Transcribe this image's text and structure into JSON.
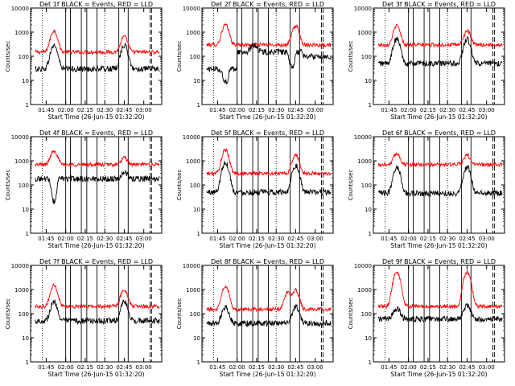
{
  "chart_data": [
    {
      "type": "line",
      "title": "Det 1f BLACK = Events, RED = LLD",
      "xlabel": "Start Time (26-Jun-15 01:32:20)",
      "ylabel": "Counts/sec",
      "yscale": "log",
      "ylim": [
        1,
        10000
      ],
      "xlim": [
        1.55,
        3.23
      ],
      "xtick_labels": [
        "01:45",
        "02:00",
        "02:15",
        "02:30",
        "02:45",
        "03:00"
      ],
      "xtick_values": [
        1.75,
        2.0,
        2.25,
        2.5,
        2.75,
        3.0
      ],
      "ytick_labels": [
        "1",
        "10",
        "100",
        "1000",
        "10000"
      ],
      "ytick_values": [
        1,
        10,
        100,
        1000,
        10000
      ],
      "dotted_markers": [
        1.7,
        2.5
      ],
      "vlines_solid": [
        2.0,
        2.06,
        2.2,
        2.27,
        2.4,
        2.68,
        2.8
      ],
      "vlines_dashed": [
        3.08,
        3.1
      ],
      "series": [
        {
          "name": "RED = LLD",
          "color": "#ff0000",
          "baseline": 150,
          "rises": [
            [
              2.75,
              150
            ]
          ],
          "bumps": [
            [
              1.85,
              0.05,
              1000
            ],
            [
              2.75,
              0.05,
              500
            ]
          ],
          "noise": 0.08
        },
        {
          "name": "BLACK = Events",
          "color": "#000000",
          "baseline": 30,
          "rises": [
            [
              2.75,
              30
            ]
          ],
          "bumps": [
            [
              1.85,
              0.05,
              250
            ],
            [
              2.75,
              0.05,
              250
            ]
          ],
          "noise": 0.12
        }
      ]
    },
    {
      "type": "line",
      "title": "Det 2f BLACK = Events, RED = LLD",
      "xlabel": "Start Time (26-Jun-15 01:32:20)",
      "ylabel": "Counts/sec",
      "yscale": "log",
      "ylim": [
        1,
        10000
      ],
      "xlim": [
        1.55,
        3.23
      ],
      "xtick_labels": [
        "01:45",
        "02:00",
        "02:15",
        "02:30",
        "02:45",
        "03:00"
      ],
      "xtick_values": [
        1.75,
        2.0,
        2.25,
        2.5,
        2.75,
        3.0
      ],
      "ytick_labels": [
        "1",
        "10",
        "100",
        "1000",
        "10000"
      ],
      "ytick_values": [
        1,
        10,
        100,
        1000,
        10000
      ],
      "dotted_markers": [
        1.7,
        2.5
      ],
      "vlines_solid": [
        2.0,
        2.06,
        2.2,
        2.27,
        2.4,
        2.68,
        2.8
      ],
      "vlines_dashed": [
        3.08,
        3.1
      ],
      "series": [
        {
          "name": "RED = LLD",
          "color": "#ff0000",
          "baseline": 300,
          "rises": [
            [
              2.75,
              300
            ]
          ],
          "bumps": [
            [
              1.85,
              0.05,
              1700
            ],
            [
              2.75,
              0.05,
              1500
            ]
          ],
          "noise": 0.08
        },
        {
          "name": "BLACK = Events",
          "color": "#000000",
          "baseline": 30,
          "rises": [
            [
              2.0,
              150
            ],
            [
              2.85,
              100
            ]
          ],
          "bumps": [
            [
              2.22,
              0.05,
              150
            ]
          ],
          "dips": [
            [
              1.85,
              0.05,
              0.3
            ],
            [
              2.7,
              0.05,
              0.25
            ]
          ],
          "noise": 0.12
        }
      ]
    },
    {
      "type": "line",
      "title": "Det 3f BLACK = Events, RED = LLD",
      "xlabel": "Start Time (26-Jun-15 01:32:20)",
      "ylabel": "Counts/sec",
      "yscale": "log",
      "ylim": [
        1,
        10000
      ],
      "xlim": [
        1.55,
        3.23
      ],
      "xtick_labels": [
        "01:45",
        "02:00",
        "02:15",
        "02:30",
        "02:45",
        "03:00"
      ],
      "xtick_values": [
        1.75,
        2.0,
        2.25,
        2.5,
        2.75,
        3.0
      ],
      "ytick_labels": [
        "1",
        "10",
        "100",
        "1000",
        "10000"
      ],
      "ytick_values": [
        1,
        10,
        100,
        1000,
        10000
      ],
      "dotted_markers": [
        1.7,
        2.5
      ],
      "vlines_solid": [
        2.0,
        2.06,
        2.2,
        2.27,
        2.4,
        2.68,
        2.8
      ],
      "vlines_dashed": [
        3.08,
        3.1
      ],
      "series": [
        {
          "name": "RED = LLD",
          "color": "#ff0000",
          "baseline": 300,
          "rises": [
            [
              2.75,
              300
            ]
          ],
          "bumps": [
            [
              1.85,
              0.05,
              1500
            ],
            [
              2.75,
              0.05,
              800
            ]
          ],
          "noise": 0.08
        },
        {
          "name": "BLACK = Events",
          "color": "#000000",
          "baseline": 50,
          "rises": [
            [
              2.75,
              50
            ]
          ],
          "bumps": [
            [
              1.85,
              0.05,
              450
            ],
            [
              2.75,
              0.05,
              450
            ]
          ],
          "noise": 0.12
        }
      ]
    },
    {
      "type": "line",
      "title": "Det 4f BLACK = Events, RED = LLD",
      "xlabel": "Start Time (26-Jun-15 01:32:20)",
      "ylabel": "Counts/sec",
      "yscale": "log",
      "ylim": [
        1,
        10000
      ],
      "xlim": [
        1.55,
        3.23
      ],
      "xtick_labels": [
        "01:45",
        "02:00",
        "02:15",
        "02:30",
        "02:45",
        "03:00"
      ],
      "xtick_values": [
        1.75,
        2.0,
        2.25,
        2.5,
        2.75,
        3.0
      ],
      "ytick_labels": [
        "1",
        "10",
        "100",
        "1000",
        "10000"
      ],
      "ytick_values": [
        1,
        10,
        100,
        1000,
        10000
      ],
      "dotted_markers": [
        1.7,
        2.5
      ],
      "vlines_solid": [
        2.0,
        2.06,
        2.2,
        2.27,
        2.4,
        2.68,
        2.8
      ],
      "vlines_dashed": [
        3.08,
        3.1
      ],
      "series": [
        {
          "name": "RED = LLD",
          "color": "#ff0000",
          "baseline": 700,
          "rises": [
            [
              2.75,
              700
            ]
          ],
          "bumps": [
            [
              1.85,
              0.05,
              2000
            ],
            [
              2.75,
              0.05,
              600
            ]
          ],
          "noise": 0.08
        },
        {
          "name": "BLACK = Events",
          "color": "#000000",
          "baseline": 180,
          "rises": [
            [
              2.75,
              180
            ]
          ],
          "bumps": [
            [
              2.75,
              0.05,
              150
            ]
          ],
          "dips": [
            [
              1.85,
              0.05,
              0.12
            ]
          ],
          "noise": 0.12
        }
      ]
    },
    {
      "type": "line",
      "title": "Det 5f BLACK = Events, RED = LLD",
      "xlabel": "Start Time (26-Jun-15 01:32:20)",
      "ylabel": "Counts/sec",
      "yscale": "log",
      "ylim": [
        1,
        10000
      ],
      "xlim": [
        1.55,
        3.23
      ],
      "xtick_labels": [
        "01:45",
        "02:00",
        "02:15",
        "02:30",
        "02:45",
        "03:00"
      ],
      "xtick_values": [
        1.75,
        2.0,
        2.25,
        2.5,
        2.75,
        3.0
      ],
      "ytick_labels": [
        "1",
        "10",
        "100",
        "1000",
        "10000"
      ],
      "ytick_values": [
        1,
        10,
        100,
        1000,
        10000
      ],
      "dotted_markers": [
        1.7,
        2.5
      ],
      "vlines_solid": [
        2.0,
        2.06,
        2.2,
        2.27,
        2.4,
        2.68,
        2.8
      ],
      "vlines_dashed": [
        3.08,
        3.1
      ],
      "series": [
        {
          "name": "RED = LLD",
          "color": "#ff0000",
          "baseline": 300,
          "rises": [
            [
              2.75,
              300
            ]
          ],
          "bumps": [
            [
              1.85,
              0.05,
              2500
            ],
            [
              2.75,
              0.05,
              1500
            ]
          ],
          "noise": 0.08
        },
        {
          "name": "BLACK = Events",
          "color": "#000000",
          "baseline": 50,
          "rises": [
            [
              2.75,
              50
            ]
          ],
          "bumps": [
            [
              1.85,
              0.05,
              800
            ],
            [
              2.75,
              0.05,
              600
            ]
          ],
          "noise": 0.12
        }
      ]
    },
    {
      "type": "line",
      "title": "Det 6f BLACK = Events, RED = LLD",
      "xlabel": "Start Time (26-Jun-15 01:32:20)",
      "ylabel": "Counts/sec",
      "yscale": "log",
      "ylim": [
        1,
        10000
      ],
      "xlim": [
        1.55,
        3.23
      ],
      "xtick_labels": [
        "01:45",
        "02:00",
        "02:15",
        "02:30",
        "02:45",
        "03:00"
      ],
      "xtick_values": [
        1.75,
        2.0,
        2.25,
        2.5,
        2.75,
        3.0
      ],
      "ytick_labels": [
        "1",
        "10",
        "100",
        "1000",
        "10000"
      ],
      "ytick_values": [
        1,
        10,
        100,
        1000,
        10000
      ],
      "dotted_markers": [
        1.7,
        2.5
      ],
      "vlines_solid": [
        2.0,
        2.06,
        2.2,
        2.27,
        2.4,
        2.68,
        2.8
      ],
      "vlines_dashed": [
        3.08,
        3.1
      ],
      "series": [
        {
          "name": "RED = LLD",
          "color": "#ff0000",
          "baseline": 700,
          "rises": [
            [
              2.75,
              700
            ]
          ],
          "bumps": [
            [
              1.85,
              0.05,
              1300
            ],
            [
              2.75,
              0.05,
              1000
            ]
          ],
          "noise": 0.08
        },
        {
          "name": "BLACK = Events",
          "color": "#000000",
          "baseline": 45,
          "rises": [
            [
              2.75,
              45
            ]
          ],
          "bumps": [
            [
              1.85,
              0.05,
              500
            ],
            [
              2.75,
              0.05,
              500
            ]
          ],
          "noise": 0.12
        }
      ]
    },
    {
      "type": "line",
      "title": "Det 7f BLACK = Events, RED = LLD",
      "xlabel": "Start Time (26-Jun-15 01:32:20)",
      "ylabel": "Counts/sec",
      "yscale": "log",
      "ylim": [
        1,
        10000
      ],
      "xlim": [
        1.55,
        3.23
      ],
      "xtick_labels": [
        "01:45",
        "02:00",
        "02:15",
        "02:30",
        "02:45",
        "03:00"
      ],
      "xtick_values": [
        1.75,
        2.0,
        2.25,
        2.5,
        2.75,
        3.0
      ],
      "ytick_labels": [
        "1",
        "10",
        "100",
        "1000",
        "10000"
      ],
      "ytick_values": [
        1,
        10,
        100,
        1000,
        10000
      ],
      "dotted_markers": [
        1.7,
        2.5
      ],
      "vlines_solid": [
        2.0,
        2.06,
        2.2,
        2.27,
        2.4,
        2.68,
        2.8
      ],
      "vlines_dashed": [
        3.08,
        3.1
      ],
      "series": [
        {
          "name": "RED = LLD",
          "color": "#ff0000",
          "baseline": 200,
          "rises": [
            [
              2.75,
              200
            ]
          ],
          "bumps": [
            [
              1.85,
              0.05,
              1300
            ],
            [
              2.75,
              0.05,
              800
            ]
          ],
          "noise": 0.08
        },
        {
          "name": "BLACK = Events",
          "color": "#000000",
          "baseline": 50,
          "rises": [
            [
              2.75,
              50
            ]
          ],
          "bumps": [
            [
              1.85,
              0.05,
              250
            ],
            [
              2.75,
              0.05,
              250
            ]
          ],
          "noise": 0.12
        }
      ]
    },
    {
      "type": "line",
      "title": "Det 8f BLACK = Events, RED = LLD",
      "xlabel": "Start Time (26-Jun-15 01:32:20)",
      "ylabel": "Counts/sec",
      "yscale": "log",
      "ylim": [
        1,
        10000
      ],
      "xlim": [
        1.55,
        3.23
      ],
      "xtick_labels": [
        "01:45",
        "02:00",
        "02:15",
        "02:30",
        "02:45",
        "03:00"
      ],
      "xtick_values": [
        1.75,
        2.0,
        2.25,
        2.5,
        2.75,
        3.0
      ],
      "ytick_labels": [
        "1",
        "10",
        "100",
        "1000",
        "10000"
      ],
      "ytick_values": [
        1,
        10,
        100,
        1000,
        10000
      ],
      "dotted_markers": [
        1.7,
        2.5
      ],
      "vlines_solid": [
        2.0,
        2.06,
        2.2,
        2.27,
        2.4,
        2.68,
        2.8
      ],
      "vlines_dashed": [
        3.08,
        3.1
      ],
      "series": [
        {
          "name": "RED = LLD",
          "color": "#ff0000",
          "baseline": 150,
          "rises": [
            [
              2.75,
              150
            ]
          ],
          "bumps": [
            [
              1.85,
              0.05,
              1300
            ],
            [
              2.75,
              0.05,
              800
            ],
            [
              2.65,
              0.05,
              600
            ]
          ],
          "noise": 0.08
        },
        {
          "name": "BLACK = Events",
          "color": "#000000",
          "baseline": 40,
          "rises": [
            [
              2.75,
              40
            ]
          ],
          "bumps": [
            [
              1.85,
              0.05,
              150
            ],
            [
              2.75,
              0.05,
              150
            ]
          ],
          "noise": 0.12
        }
      ]
    },
    {
      "type": "line",
      "title": "Det 9f BLACK = Events, RED = LLD",
      "xlabel": "Start Time (26-Jun-15 01:32:20)",
      "ylabel": "Counts/sec",
      "yscale": "log",
      "ylim": [
        1,
        10000
      ],
      "xlim": [
        1.55,
        3.23
      ],
      "xtick_labels": [
        "01:45",
        "02:00",
        "02:15",
        "02:30",
        "02:45",
        "03:00"
      ],
      "xtick_values": [
        1.75,
        2.0,
        2.25,
        2.5,
        2.75,
        3.0
      ],
      "ytick_labels": [
        "1",
        "10",
        "100",
        "1000",
        "10000"
      ],
      "ytick_values": [
        1,
        10,
        100,
        1000,
        10000
      ],
      "dotted_markers": [
        1.7,
        2.5
      ],
      "vlines_solid": [
        2.0,
        2.06,
        2.2,
        2.27,
        2.4,
        2.68,
        2.8
      ],
      "vlines_dashed": [
        3.08,
        3.1
      ],
      "series": [
        {
          "name": "RED = LLD",
          "color": "#ff0000",
          "baseline": 200,
          "rises": [
            [
              2.75,
              200
            ]
          ],
          "bumps": [
            [
              1.85,
              0.05,
              5000
            ],
            [
              2.75,
              0.05,
              5000
            ]
          ],
          "noise": 0.08
        },
        {
          "name": "BLACK = Events",
          "color": "#000000",
          "baseline": 60,
          "rises": [
            [
              2.75,
              60
            ]
          ],
          "bumps": [
            [
              1.85,
              0.05,
              100
            ],
            [
              2.75,
              0.05,
              150
            ]
          ],
          "noise": 0.12
        }
      ]
    }
  ]
}
